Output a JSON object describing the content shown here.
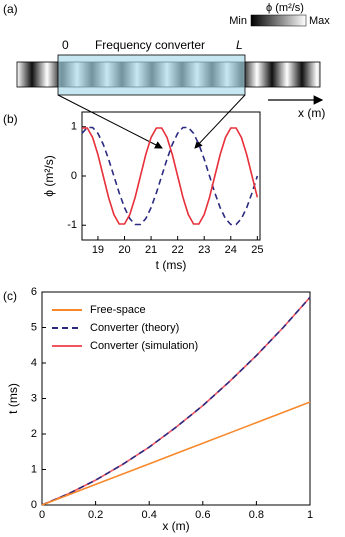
{
  "panel_a": {
    "panel_label": "(a)",
    "converter_label": "Frequency converter",
    "start_label": "0",
    "end_label": "L",
    "colorbar_title": "ϕ (m²/s)",
    "colorbar_min": "Min",
    "colorbar_max": "Max",
    "axis_label": "x (m)"
  },
  "chart_data": [
    {
      "type": "line",
      "panel_label": "(b)",
      "xlabel": "t (ms)",
      "ylabel": "ϕ (m²/s)",
      "x": [
        18.4,
        18.6,
        18.8,
        19.0,
        19.2,
        19.4,
        19.6,
        19.8,
        20.0,
        20.2,
        20.4,
        20.6,
        20.8,
        21.0,
        21.2,
        21.4,
        21.6,
        21.8,
        22.0,
        22.2,
        22.4,
        22.6,
        22.8,
        23.0,
        23.2,
        23.4,
        23.6,
        23.8,
        24.0,
        24.2,
        24.4,
        24.6,
        24.8,
        25.0
      ],
      "series": [
        {
          "color": "#e8303a",
          "linestyle": "solid",
          "values": [
            0.975,
            0.975,
            0.782,
            0.434,
            0,
            -0.434,
            -0.782,
            -0.975,
            -0.975,
            -0.782,
            -0.434,
            0,
            0.434,
            0.782,
            0.975,
            0.975,
            0.782,
            0.434,
            0,
            -0.434,
            -0.782,
            -0.975,
            -0.975,
            -0.782,
            -0.434,
            0,
            0.434,
            0.782,
            0.975,
            0.975,
            0.782,
            0.434,
            0,
            -0.434
          ]
        },
        {
          "color": "#2b2a80",
          "linestyle": "dashed",
          "values": [
            0.866,
            0.985,
            0.985,
            0.866,
            0.643,
            0.342,
            0,
            -0.342,
            -0.643,
            -0.866,
            -0.985,
            -0.985,
            -0.866,
            -0.643,
            -0.342,
            0,
            0.342,
            0.643,
            0.866,
            0.985,
            0.985,
            0.866,
            0.643,
            0.342,
            0,
            -0.342,
            -0.643,
            -0.866,
            -0.985,
            -0.985,
            -0.866,
            -0.643,
            -0.342,
            0
          ]
        }
      ],
      "xlim": [
        18.4,
        25.1
      ],
      "ylim": [
        -1.3,
        1.3
      ],
      "xticks": [
        19,
        20,
        21,
        22,
        23,
        24,
        25
      ],
      "yticks": [
        -1,
        0,
        1
      ]
    },
    {
      "type": "line",
      "panel_label": "(c)",
      "xlabel": "x (m)",
      "ylabel": "t (ms)",
      "legend": "upper left",
      "x": [
        0,
        0.1,
        0.2,
        0.3,
        0.4,
        0.5,
        0.6,
        0.7,
        0.8,
        0.9,
        1
      ],
      "series": [
        {
          "name": "Free-space",
          "color": "#f7892b",
          "linestyle": "solid",
          "values": [
            0,
            0.29,
            0.58,
            0.87,
            1.16,
            1.45,
            1.74,
            2.03,
            2.32,
            2.61,
            2.9
          ]
        },
        {
          "name": "Converter (theory)",
          "color": "#2b2a80",
          "linestyle": "dashed",
          "values": [
            0,
            0.32,
            0.7,
            1.14,
            1.63,
            2.19,
            2.8,
            3.48,
            4.21,
            5.0,
            5.85
          ]
        },
        {
          "name": "Converter (simulation)",
          "color": "#f25560",
          "linestyle": "solid",
          "values": [
            0,
            0.32,
            0.7,
            1.14,
            1.63,
            2.19,
            2.8,
            3.48,
            4.21,
            5.0,
            5.85
          ]
        }
      ],
      "xlim": [
        0,
        1
      ],
      "ylim": [
        0,
        6
      ],
      "xticks": [
        0,
        0.2,
        0.4,
        0.6,
        0.8,
        1
      ],
      "yticks": [
        0,
        1,
        2,
        3,
        4,
        5,
        6
      ]
    }
  ]
}
